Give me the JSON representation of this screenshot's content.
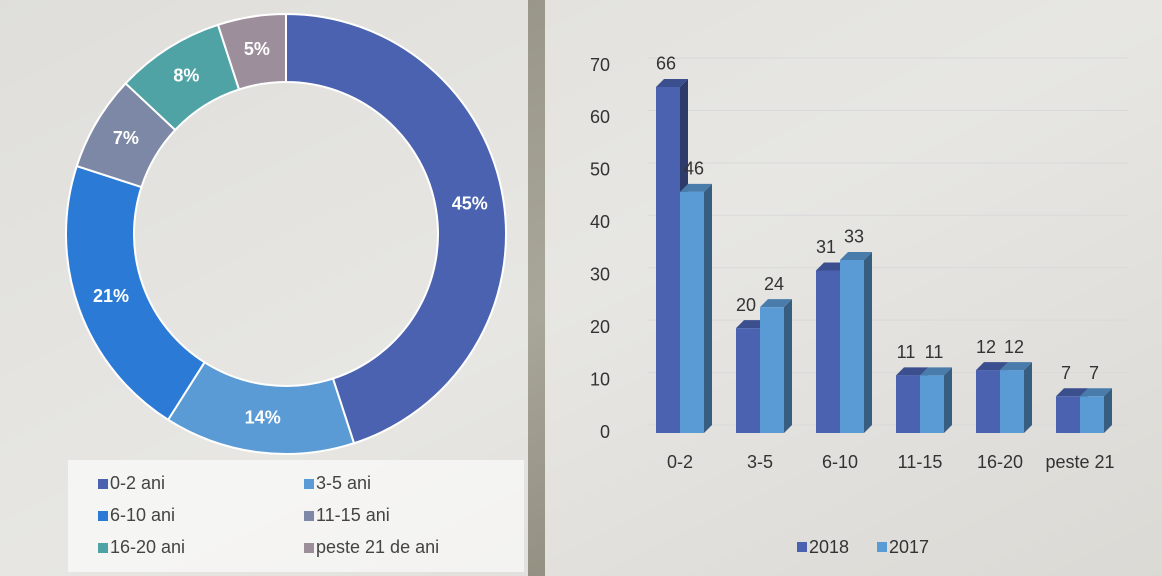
{
  "chart_data": [
    {
      "type": "donut",
      "categories": [
        "0-2 ani",
        "3-5 ani",
        "6-10 ani",
        "11-15 ani",
        "16-20 ani",
        "peste 21 de  ani"
      ],
      "values": [
        45,
        14,
        21,
        7,
        8,
        5
      ],
      "value_labels": [
        "45%",
        "14%",
        "21%",
        "7%",
        "8%",
        "5%"
      ],
      "colors": [
        "#4a62b0",
        "#5b9bd5",
        "#2b7bd6",
        "#7d88a6",
        "#4fa3a5",
        "#9d8e9c"
      ],
      "legend": "bottom"
    },
    {
      "type": "bar3d",
      "categories": [
        "0-2",
        "3-5",
        "6-10",
        "11-15",
        "16-20",
        "peste 21"
      ],
      "series": [
        {
          "name": "2018",
          "color": "#4a62b0",
          "values": [
            66,
            20,
            31,
            11,
            12,
            7
          ]
        },
        {
          "name": "2017",
          "color": "#5b9bd5",
          "values": [
            46,
            24,
            33,
            11,
            12,
            7
          ]
        }
      ],
      "ylim": [
        0,
        70
      ],
      "yticks": [
        0,
        10,
        20,
        30,
        40,
        50,
        60,
        70
      ],
      "grid": true,
      "legend": "bottom"
    }
  ]
}
